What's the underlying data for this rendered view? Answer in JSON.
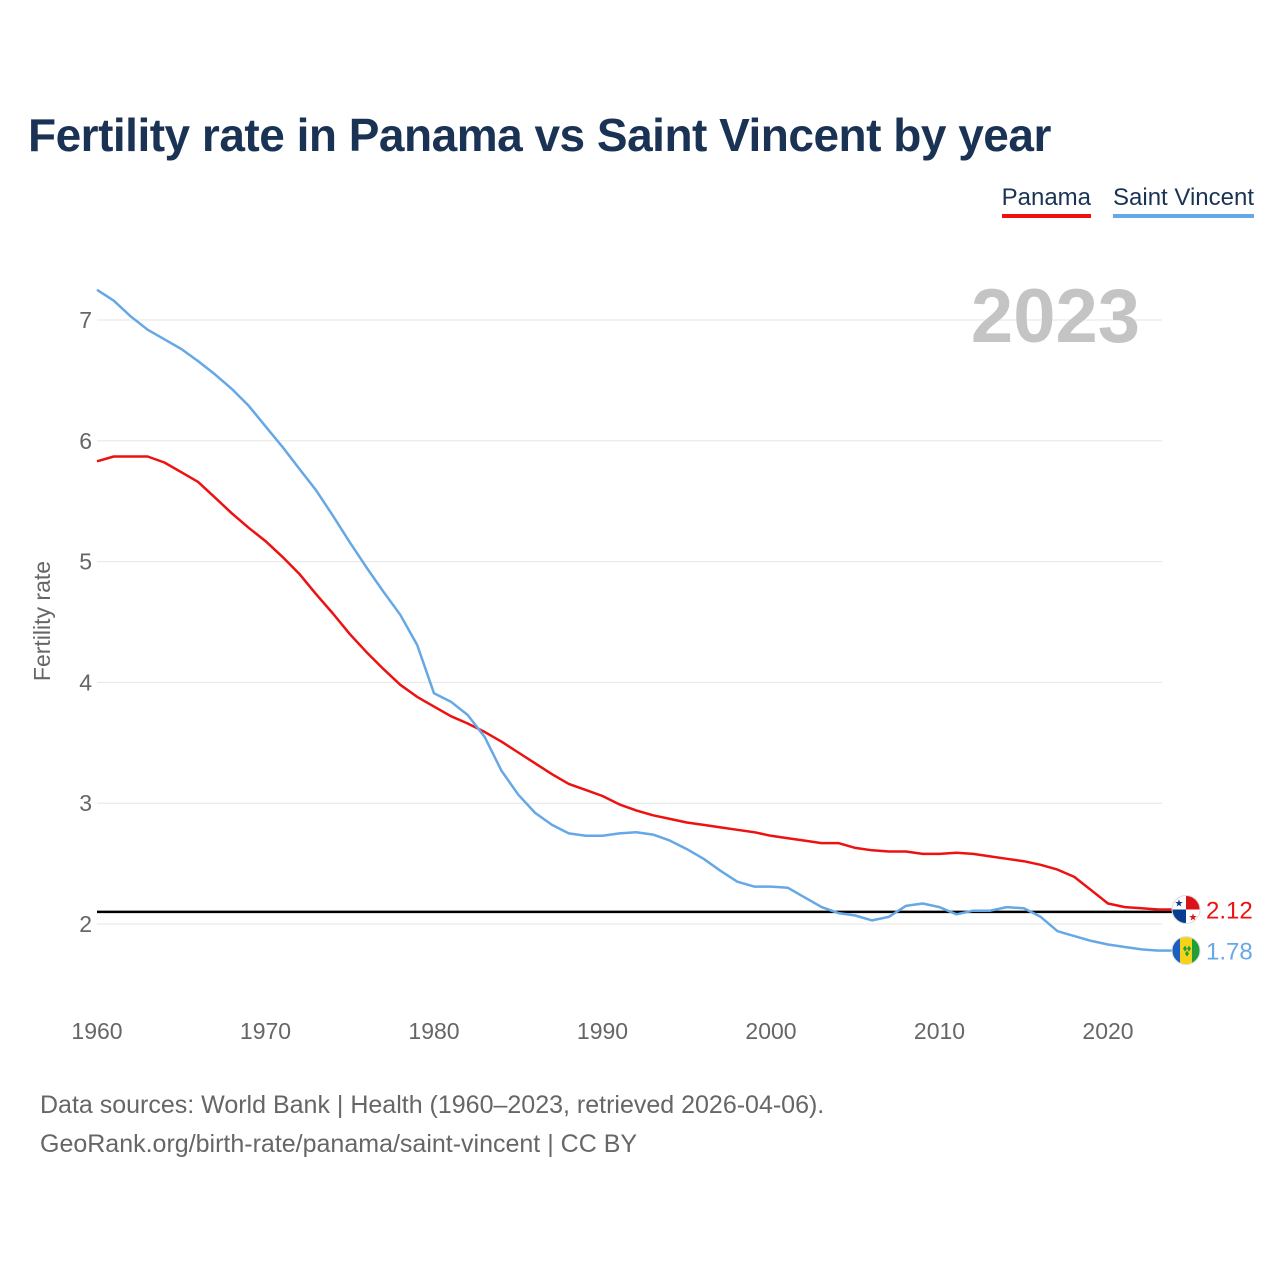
{
  "title": "Fertility rate in Panama vs Saint Vincent by year",
  "legend": [
    {
      "name": "Panama",
      "color": "#ee1111"
    },
    {
      "name": "Saint Vincent",
      "color": "#66a8e6"
    }
  ],
  "year_label": "2023",
  "footer": {
    "line1": "Data sources: World Bank | Health (1960–2023, retrieved 2026-04-06).",
    "line2": "GeoRank.org/birth-rate/panama/saint-vincent | CC BY"
  },
  "chart_data": {
    "type": "line",
    "title": "Fertility rate in Panama vs Saint Vincent by year",
    "xlabel": "",
    "ylabel": "Fertility rate",
    "xlim": [
      1960,
      2023
    ],
    "ylim": [
      1.5,
      7.5
    ],
    "x_ticks": [
      1960,
      1970,
      1980,
      1990,
      2000,
      2010,
      2020
    ],
    "y_ticks": [
      2,
      3,
      4,
      5,
      6,
      7
    ],
    "reference_line": {
      "y": 2.1
    },
    "x": [
      1960,
      1961,
      1962,
      1963,
      1964,
      1965,
      1966,
      1967,
      1968,
      1969,
      1970,
      1971,
      1972,
      1973,
      1974,
      1975,
      1976,
      1977,
      1978,
      1979,
      1980,
      1981,
      1982,
      1983,
      1984,
      1985,
      1986,
      1987,
      1988,
      1989,
      1990,
      1991,
      1992,
      1993,
      1994,
      1995,
      1996,
      1997,
      1998,
      1999,
      2000,
      2001,
      2002,
      2003,
      2004,
      2005,
      2006,
      2007,
      2008,
      2009,
      2010,
      2011,
      2012,
      2013,
      2014,
      2015,
      2016,
      2017,
      2018,
      2019,
      2020,
      2021,
      2022,
      2023
    ],
    "series": [
      {
        "name": "Panama",
        "color": "#ee1111",
        "end_label": "2.12",
        "values": [
          5.83,
          5.87,
          5.87,
          5.87,
          5.82,
          5.74,
          5.66,
          5.53,
          5.4,
          5.28,
          5.17,
          5.04,
          4.9,
          4.73,
          4.57,
          4.4,
          4.25,
          4.11,
          3.98,
          3.88,
          3.8,
          3.72,
          3.66,
          3.59,
          3.51,
          3.42,
          3.33,
          3.24,
          3.16,
          3.11,
          3.06,
          2.99,
          2.94,
          2.9,
          2.87,
          2.84,
          2.82,
          2.8,
          2.78,
          2.76,
          2.73,
          2.71,
          2.69,
          2.67,
          2.67,
          2.63,
          2.61,
          2.6,
          2.6,
          2.58,
          2.58,
          2.59,
          2.58,
          2.56,
          2.54,
          2.52,
          2.49,
          2.45,
          2.39,
          2.28,
          2.17,
          2.14,
          2.13,
          2.12
        ]
      },
      {
        "name": "Saint Vincent",
        "color": "#66a8e6",
        "end_label": "1.78",
        "values": [
          7.25,
          7.16,
          7.03,
          6.92,
          6.84,
          6.76,
          6.66,
          6.55,
          6.43,
          6.29,
          6.12,
          5.95,
          5.77,
          5.59,
          5.38,
          5.16,
          4.95,
          4.75,
          4.56,
          4.31,
          3.91,
          3.84,
          3.73,
          3.55,
          3.27,
          3.07,
          2.92,
          2.82,
          2.75,
          2.73,
          2.73,
          2.75,
          2.76,
          2.74,
          2.69,
          2.62,
          2.54,
          2.44,
          2.35,
          2.31,
          2.31,
          2.3,
          2.22,
          2.14,
          2.09,
          2.07,
          2.03,
          2.06,
          2.15,
          2.17,
          2.14,
          2.08,
          2.11,
          2.11,
          2.14,
          2.13,
          2.06,
          1.94,
          1.9,
          1.86,
          1.83,
          1.81,
          1.79,
          1.78
        ]
      }
    ]
  }
}
